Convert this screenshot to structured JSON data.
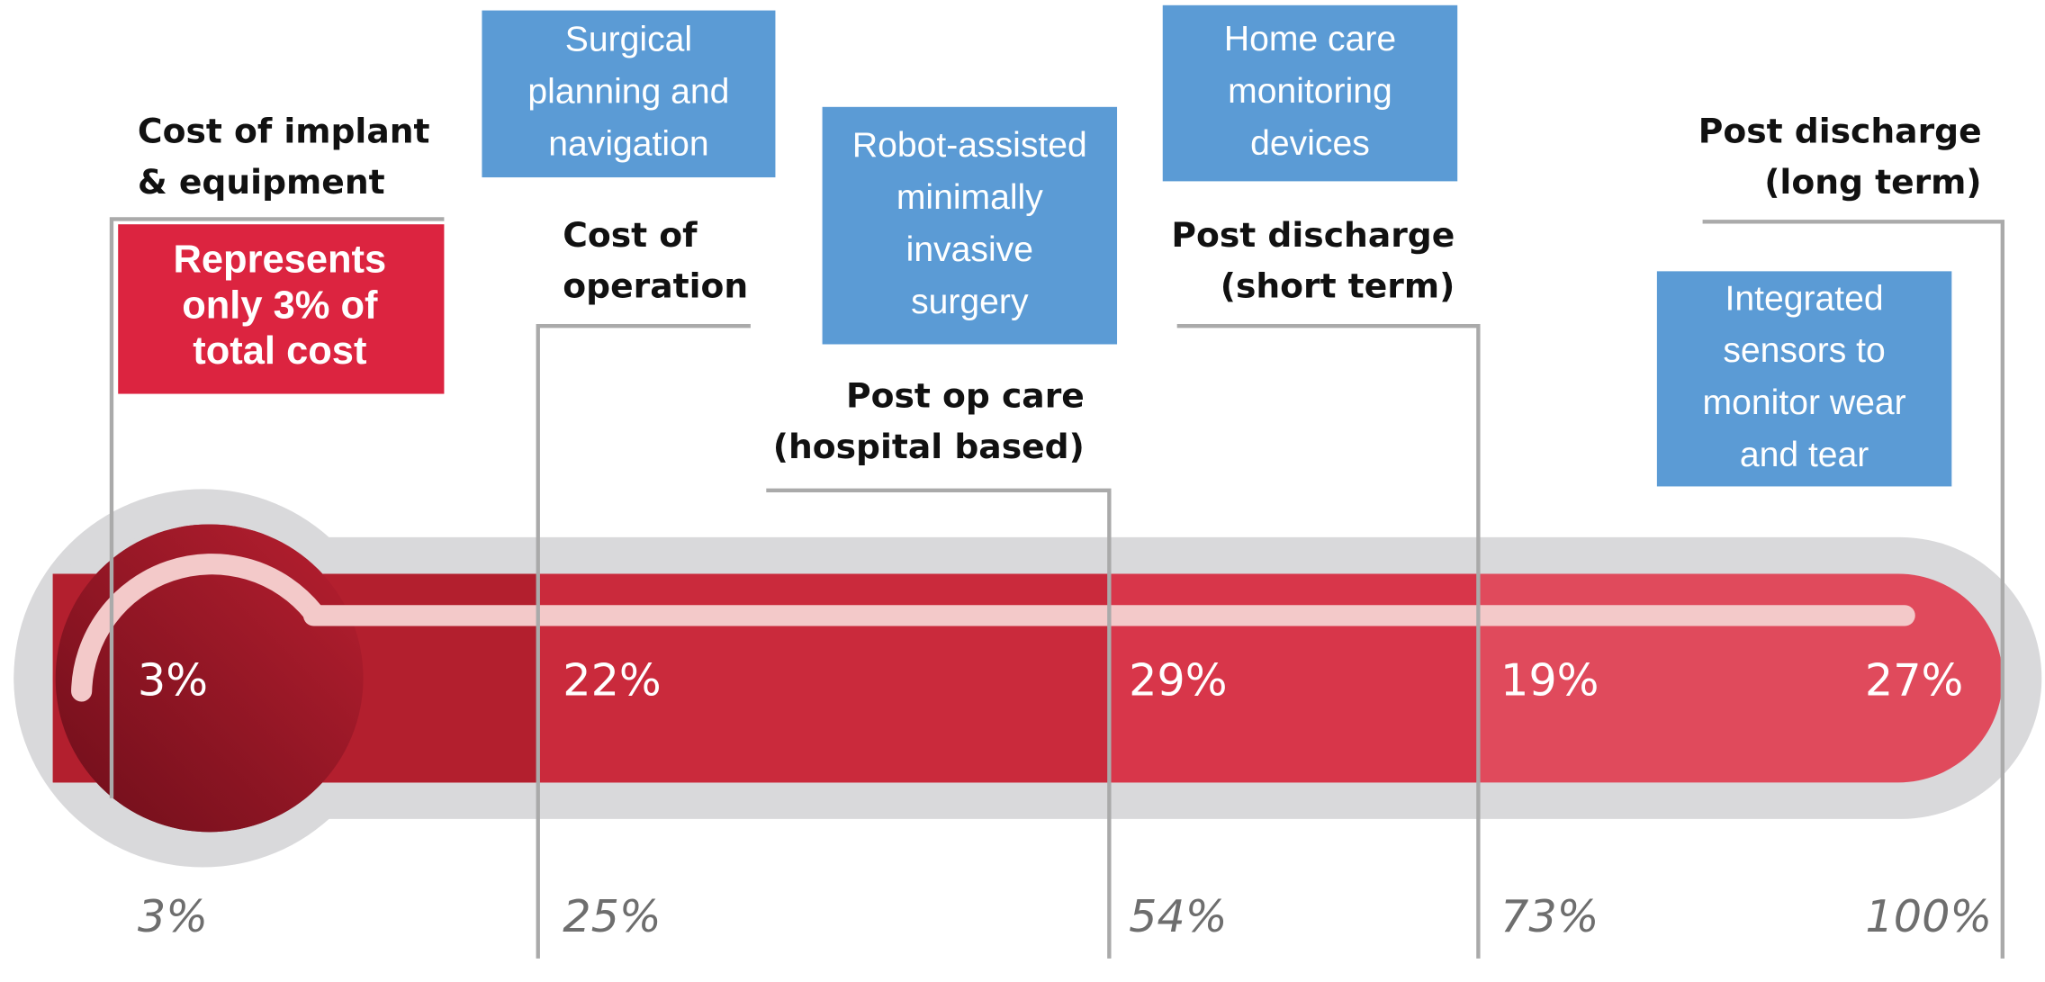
{
  "note": [
    "Represents",
    "only 3% of",
    "total cost"
  ],
  "segments": [
    {
      "label": [
        "Cost of implant",
        "& equipment"
      ],
      "share": "3%",
      "cumulative": "3%"
    },
    {
      "label": [
        "Cost of",
        "operation"
      ],
      "share": "22%",
      "cumulative": "25%"
    },
    {
      "label": [
        "Post op care",
        "(hospital based)"
      ],
      "share": "29%",
      "cumulative": "54%"
    },
    {
      "label": [
        "Post discharge",
        "(short term)"
      ],
      "share": "19%",
      "cumulative": "73%"
    },
    {
      "label": [
        "Post discharge",
        "(long term)"
      ],
      "share": "27%",
      "cumulative": "100%"
    }
  ],
  "innovations": [
    {
      "lines": [
        "Surgical",
        "planning and",
        "navigation"
      ]
    },
    {
      "lines": [
        "Robot-assisted",
        "minimally",
        "invasive",
        "surgery"
      ]
    },
    {
      "lines": [
        "Home care",
        "monitoring",
        "devices"
      ]
    },
    {
      "lines": [
        "Integrated",
        "sensors to",
        "monitor wear",
        "and tear"
      ]
    }
  ]
}
